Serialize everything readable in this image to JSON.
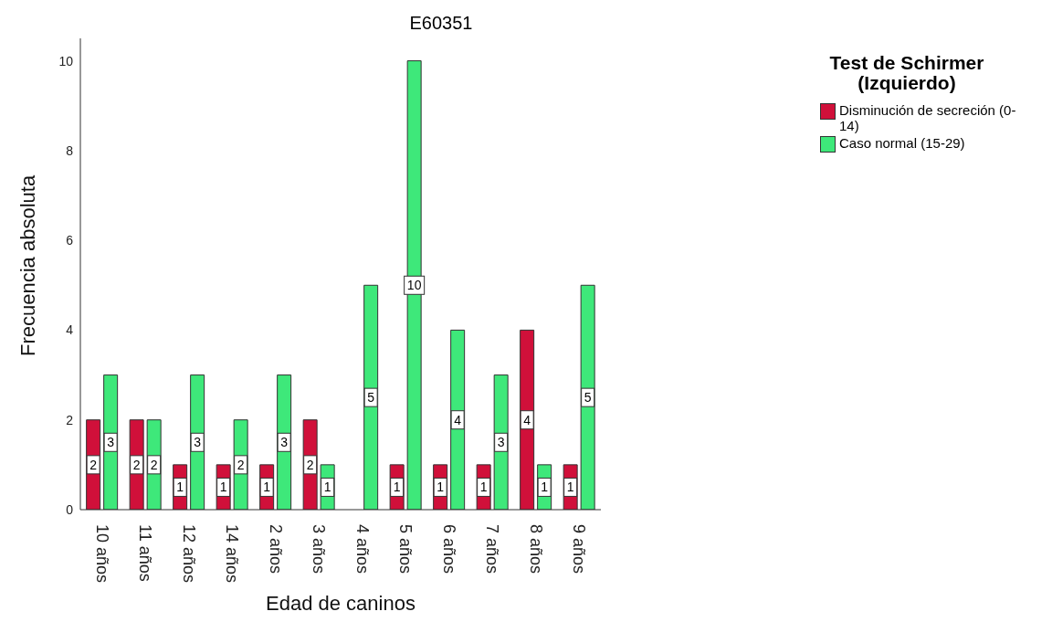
{
  "chart_data": {
    "type": "bar",
    "title": "E60351",
    "xlabel": "Edad de caninos",
    "ylabel": "Frecuencia absoluta",
    "legend_title": "Test de Schirmer (Izquierdo)",
    "categories": [
      "10 años",
      "11 años",
      "12 años",
      "14 años",
      "2 años",
      "3 años",
      "4 años",
      "5 años",
      "6 años",
      "7 años",
      "8 años",
      "9 años"
    ],
    "series": [
      {
        "name": "Disminución de secreción (0-14)",
        "color": "#d0103a",
        "values": [
          2,
          2,
          1,
          1,
          1,
          2,
          null,
          1,
          1,
          1,
          4,
          1
        ]
      },
      {
        "name": "Caso normal (15-29)",
        "color": "#3ee87a",
        "values": [
          3,
          2,
          3,
          2,
          3,
          1,
          5,
          10,
          4,
          3,
          1,
          5
        ]
      }
    ],
    "ylim": [
      0,
      10.5
    ],
    "yticks": [
      0,
      2,
      4,
      6,
      8,
      10
    ],
    "grid": false,
    "legend": "top right",
    "data_labels": true
  }
}
